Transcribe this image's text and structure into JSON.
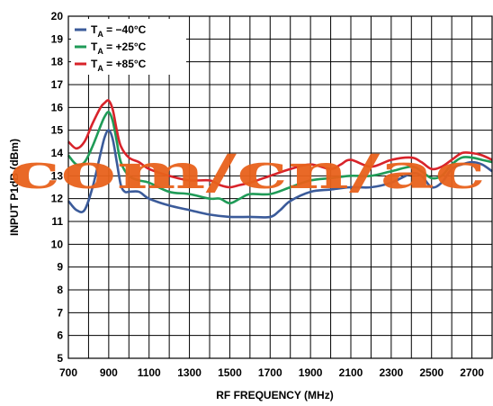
{
  "chart_data": {
    "type": "line",
    "xlabel": "RF FREQUENCY (MHz)",
    "ylabel": "INPUT P1dB (dBm)",
    "xlim": [
      700,
      2800
    ],
    "ylim": [
      5,
      20
    ],
    "xticks": [
      700,
      900,
      1100,
      1300,
      1500,
      1700,
      1900,
      2100,
      2300,
      2500,
      2700
    ],
    "yticks": [
      5,
      6,
      7,
      8,
      9,
      10,
      11,
      12,
      13,
      14,
      15,
      16,
      17,
      18,
      19,
      20
    ],
    "grid": true,
    "legend_position": "top-left",
    "series": [
      {
        "name": "TA = −40°C",
        "label_main": "T",
        "label_sub": "A",
        "label_rest": " = −40°C",
        "color": "#3b5b9a",
        "x": [
          700,
          740,
          780,
          820,
          860,
          880,
          900,
          920,
          940,
          960,
          980,
          1000,
          1050,
          1100,
          1200,
          1300,
          1400,
          1500,
          1600,
          1700,
          1750,
          1800,
          1900,
          2000,
          2100,
          2200,
          2300,
          2400,
          2450,
          2500,
          2550,
          2600,
          2650,
          2700,
          2750,
          2800
        ],
        "y": [
          11.9,
          11.5,
          11.5,
          12.5,
          14.0,
          14.7,
          15.0,
          14.6,
          13.6,
          12.6,
          12.3,
          12.3,
          12.3,
          12.0,
          11.7,
          11.5,
          11.3,
          11.2,
          11.2,
          11.2,
          11.5,
          11.9,
          12.3,
          12.4,
          12.5,
          12.5,
          12.7,
          13.1,
          13.0,
          12.5,
          12.7,
          13.3,
          13.5,
          13.6,
          13.5,
          13.2
        ]
      },
      {
        "name": "TA = +25°C",
        "label_main": "T",
        "label_sub": "A",
        "label_rest": " = +25°C",
        "color": "#1f9b57",
        "x": [
          700,
          740,
          780,
          820,
          860,
          880,
          900,
          920,
          940,
          960,
          1000,
          1050,
          1100,
          1200,
          1300,
          1400,
          1450,
          1500,
          1550,
          1600,
          1700,
          1800,
          1900,
          2000,
          2100,
          2200,
          2300,
          2400,
          2450,
          2500,
          2550,
          2600,
          2650,
          2700,
          2750,
          2800
        ],
        "y": [
          13.9,
          13.5,
          13.6,
          14.3,
          15.2,
          15.6,
          15.8,
          15.4,
          14.5,
          13.6,
          13.0,
          12.8,
          12.7,
          12.3,
          12.2,
          12.0,
          12.0,
          11.8,
          12.0,
          12.2,
          12.2,
          12.5,
          12.8,
          12.9,
          13.0,
          13.0,
          13.2,
          13.4,
          13.2,
          12.9,
          13.0,
          13.5,
          13.8,
          13.8,
          13.7,
          13.6
        ]
      },
      {
        "name": "TA = +85°C",
        "label_main": "T",
        "label_sub": "A",
        "label_rest": " = +85°C",
        "color": "#d8232a",
        "x": [
          700,
          740,
          780,
          820,
          860,
          880,
          900,
          920,
          940,
          960,
          1000,
          1050,
          1100,
          1200,
          1300,
          1400,
          1450,
          1500,
          1550,
          1600,
          1700,
          1800,
          1900,
          2000,
          2050,
          2100,
          2200,
          2300,
          2400,
          2450,
          2500,
          2550,
          2600,
          2650,
          2700,
          2750,
          2800
        ],
        "y": [
          14.5,
          14.2,
          14.5,
          15.3,
          16.0,
          16.2,
          16.3,
          15.9,
          15.0,
          14.3,
          13.8,
          13.6,
          13.3,
          13.0,
          12.8,
          12.8,
          12.6,
          12.5,
          12.6,
          12.7,
          13.0,
          13.3,
          13.5,
          13.3,
          13.5,
          13.7,
          13.4,
          13.7,
          13.8,
          13.6,
          13.3,
          13.4,
          13.7,
          14.0,
          14.0,
          13.9,
          13.7
        ]
      }
    ]
  },
  "watermark": {
    "text": "com/cn/ac",
    "color": "#e8621c"
  }
}
